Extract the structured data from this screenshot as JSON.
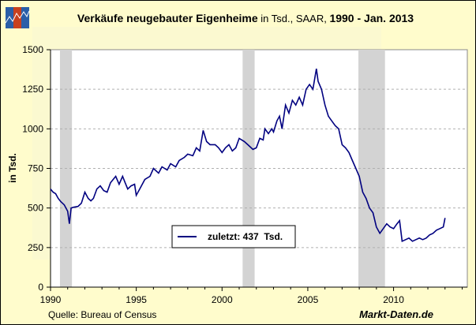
{
  "chart_data": {
    "type": "line",
    "title_bold": "Verkäufe neugebauter Eigenheime",
    "title_normal": " in Tsd., SAAR, ",
    "title_range": "1990 - Jan. 2013",
    "ylabel": "in Tsd.",
    "xlabel": "",
    "xlim": [
      1990,
      2014.3
    ],
    "ylim": [
      0,
      1500
    ],
    "yticks": [
      0,
      250,
      500,
      750,
      1000,
      1250,
      1500
    ],
    "xticks": [
      1990,
      1995,
      2000,
      2005,
      2010
    ],
    "grid": "horizontal dashed",
    "recessions": [
      [
        1990.55,
        1991.25
      ],
      [
        2001.2,
        2001.9
      ],
      [
        2007.95,
        2009.5
      ]
    ],
    "legend": {
      "label": "zuletzt: 437  Tsd.",
      "placement": "center-bottom"
    },
    "series": [
      {
        "name": "Verkäufe neugebauter Eigenheime",
        "color": "#000080",
        "x": [
          1990.0,
          1990.15,
          1990.3,
          1990.45,
          1990.6,
          1990.8,
          1991.0,
          1991.1,
          1991.2,
          1991.35,
          1991.6,
          1991.8,
          1992.0,
          1992.2,
          1992.35,
          1992.5,
          1992.7,
          1992.9,
          1993.1,
          1993.3,
          1993.5,
          1993.8,
          1994.0,
          1994.2,
          1994.35,
          1994.5,
          1994.7,
          1994.9,
          1995.0,
          1995.2,
          1995.5,
          1995.8,
          1996.0,
          1996.3,
          1996.5,
          1996.8,
          1997.0,
          1997.3,
          1997.5,
          1997.8,
          1998.0,
          1998.3,
          1998.5,
          1998.7,
          1998.9,
          1999.1,
          1999.3,
          1999.6,
          1999.8,
          2000.0,
          2000.2,
          2000.4,
          2000.6,
          2000.8,
          2001.0,
          2001.3,
          2001.5,
          2001.8,
          2002.0,
          2002.2,
          2002.4,
          2002.5,
          2002.7,
          2002.9,
          2003.0,
          2003.2,
          2003.35,
          2003.5,
          2003.7,
          2003.9,
          2004.1,
          2004.3,
          2004.5,
          2004.7,
          2004.9,
          2005.1,
          2005.3,
          2005.5,
          2005.6,
          2005.8,
          2006.0,
          2006.2,
          2006.4,
          2006.6,
          2006.8,
          2007.0,
          2007.2,
          2007.4,
          2007.6,
          2007.8,
          2008.0,
          2008.2,
          2008.4,
          2008.6,
          2008.8,
          2009.0,
          2009.2,
          2009.4,
          2009.6,
          2009.8,
          2010.0,
          2010.2,
          2010.35,
          2010.5,
          2010.7,
          2010.9,
          2011.1,
          2011.3,
          2011.5,
          2011.7,
          2011.9,
          2012.1,
          2012.3,
          2012.5,
          2012.7,
          2012.9,
          2013.0
        ],
        "values": [
          620,
          600,
          590,
          560,
          540,
          520,
          480,
          400,
          500,
          505,
          510,
          530,
          600,
          560,
          545,
          560,
          620,
          640,
          610,
          600,
          660,
          700,
          650,
          700,
          660,
          620,
          640,
          650,
          580,
          620,
          680,
          700,
          750,
          720,
          760,
          740,
          780,
          760,
          800,
          820,
          840,
          830,
          880,
          860,
          990,
          920,
          900,
          900,
          880,
          850,
          880,
          900,
          860,
          880,
          940,
          920,
          900,
          870,
          880,
          940,
          930,
          1000,
          970,
          1000,
          980,
          1050,
          1080,
          1000,
          1150,
          1100,
          1180,
          1150,
          1200,
          1150,
          1250,
          1280,
          1250,
          1380,
          1300,
          1250,
          1150,
          1080,
          1050,
          1020,
          1000,
          900,
          880,
          850,
          800,
          750,
          700,
          600,
          560,
          500,
          470,
          380,
          340,
          370,
          400,
          380,
          370,
          400,
          420,
          290,
          300,
          310,
          290,
          300,
          310,
          300,
          310,
          330,
          340,
          360,
          370,
          380,
          437
        ]
      }
    ]
  },
  "footer": {
    "source": "Quelle: Bureau of Census",
    "brand": "Markt-Daten.de"
  }
}
